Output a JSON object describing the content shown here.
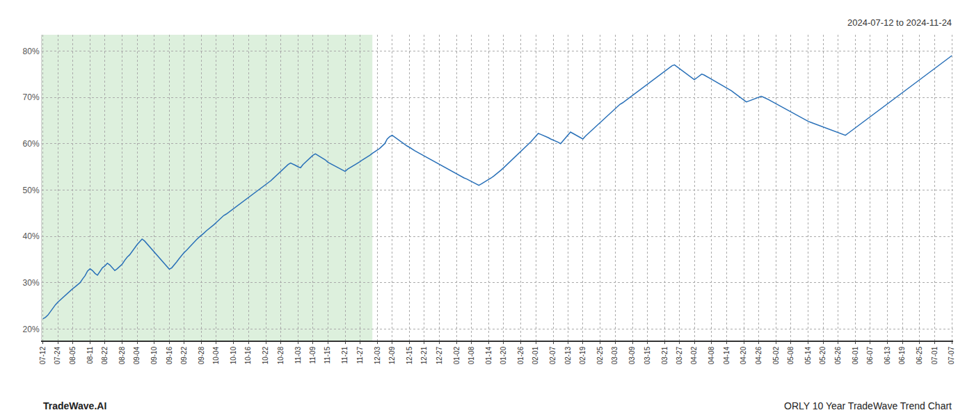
{
  "chart_data": {
    "type": "line",
    "annotations": [
      "2024-07-12 to 2024-11-24",
      "TradeWave.AI",
      "ORLY 10 Year TradeWave Trend Chart"
    ],
    "color": "#2970b8",
    "grid": true,
    "highlight": {
      "end": 133,
      "color": "#d4ecd4"
    },
    "ylim": [
      0.175,
      0.835
    ],
    "yticks": [
      {
        "value": 0.2,
        "label": "20%"
      },
      {
        "value": 0.3,
        "label": "30%"
      },
      {
        "value": 0.4,
        "label": "40%"
      },
      {
        "value": 0.5,
        "label": "50%"
      },
      {
        "value": 0.6,
        "label": "60%"
      },
      {
        "value": 0.7,
        "label": "70%"
      },
      {
        "value": 0.8,
        "label": "80%"
      }
    ],
    "categories": [
      "07-12",
      null,
      null,
      null,
      null,
      null,
      "07-24",
      null,
      null,
      null,
      null,
      null,
      "08-05",
      null,
      null,
      null,
      null,
      null,
      null,
      "08-11",
      null,
      null,
      null,
      null,
      null,
      "08-22",
      null,
      null,
      null,
      null,
      null,
      null,
      "08-28",
      null,
      null,
      null,
      null,
      null,
      "09-04",
      null,
      null,
      null,
      null,
      null,
      null,
      "09-10",
      null,
      null,
      null,
      null,
      null,
      "09-16",
      null,
      null,
      null,
      null,
      null,
      "09-22",
      null,
      null,
      null,
      null,
      null,
      null,
      "09-28",
      null,
      null,
      null,
      null,
      null,
      "10-04",
      null,
      null,
      null,
      null,
      null,
      null,
      "10-10",
      null,
      null,
      null,
      null,
      null,
      "10-16",
      null,
      null,
      null,
      null,
      null,
      null,
      "10-22",
      null,
      null,
      null,
      null,
      null,
      "10-28",
      null,
      null,
      null,
      null,
      null,
      null,
      "11-03",
      null,
      null,
      null,
      null,
      null,
      "11-09",
      null,
      null,
      null,
      null,
      null,
      "11-15",
      null,
      null,
      null,
      null,
      null,
      null,
      "11-21",
      null,
      null,
      null,
      null,
      null,
      "11-27",
      null,
      null,
      null,
      null,
      null,
      null,
      "12-03",
      null,
      null,
      null,
      null,
      null,
      "12-09",
      null,
      null,
      null,
      null,
      null,
      null,
      "12-15",
      null,
      null,
      null,
      null,
      null,
      "12-21",
      null,
      null,
      null,
      null,
      null,
      "12-27",
      null,
      null,
      null,
      null,
      null,
      null,
      "01-02",
      null,
      null,
      null,
      null,
      null,
      "01-08",
      null,
      null,
      null,
      null,
      null,
      null,
      "01-14",
      null,
      null,
      null,
      null,
      null,
      "01-20",
      null,
      null,
      null,
      null,
      null,
      null,
      "01-26",
      null,
      null,
      null,
      null,
      null,
      "02-01",
      null,
      null,
      null,
      null,
      null,
      null,
      "02-07",
      null,
      null,
      null,
      null,
      null,
      "02-13",
      null,
      null,
      null,
      null,
      null,
      "02-19",
      null,
      null,
      null,
      null,
      null,
      null,
      "02-25",
      null,
      null,
      null,
      null,
      null,
      "03-03",
      null,
      null,
      null,
      null,
      null,
      null,
      "03-09",
      null,
      null,
      null,
      null,
      null,
      "03-15",
      null,
      null,
      null,
      null,
      null,
      null,
      "03-21",
      null,
      null,
      null,
      null,
      null,
      "03-27",
      null,
      null,
      null,
      null,
      null,
      "04-02",
      null,
      null,
      null,
      null,
      null,
      null,
      "04-08",
      null,
      null,
      null,
      null,
      null,
      "04-14",
      null,
      null,
      null,
      null,
      null,
      null,
      "04-20",
      null,
      null,
      null,
      null,
      null,
      "04-26",
      null,
      null,
      null,
      null,
      null,
      null,
      "05-02",
      null,
      null,
      null,
      null,
      null,
      "05-08",
      null,
      null,
      null,
      null,
      null,
      null,
      "05-14",
      null,
      null,
      null,
      null,
      null,
      "05-20",
      null,
      null,
      null,
      null,
      null,
      "05-26",
      null,
      null,
      null,
      null,
      null,
      null,
      "06-01",
      null,
      null,
      null,
      null,
      null,
      "06-07",
      null,
      null,
      null,
      null,
      null,
      null,
      "06-13",
      null,
      null,
      null,
      null,
      null,
      "06-19",
      null,
      null,
      null,
      null,
      null,
      null,
      "06-25",
      null,
      null,
      null,
      null,
      null,
      "07-01",
      null,
      null,
      null,
      null,
      null,
      null,
      "07-07"
    ],
    "values": [
      0.222,
      0.225,
      0.23,
      0.238,
      0.245,
      0.252,
      0.258,
      0.263,
      0.268,
      0.272,
      0.278,
      0.282,
      0.287,
      0.291,
      0.296,
      0.3,
      0.308,
      0.315,
      0.325,
      0.33,
      0.326,
      0.32,
      0.316,
      0.325,
      0.332,
      0.336,
      0.342,
      0.338,
      0.332,
      0.326,
      0.33,
      0.335,
      0.34,
      0.348,
      0.355,
      0.36,
      0.368,
      0.375,
      0.382,
      0.388,
      0.394,
      0.39,
      0.384,
      0.378,
      0.372,
      0.366,
      0.36,
      0.353,
      0.347,
      0.341,
      0.335,
      0.329,
      0.332,
      0.338,
      0.345,
      0.352,
      0.359,
      0.365,
      0.37,
      0.376,
      0.382,
      0.388,
      0.393,
      0.398,
      0.402,
      0.407,
      0.412,
      0.416,
      0.421,
      0.425,
      0.43,
      0.435,
      0.44,
      0.445,
      0.448,
      0.452,
      0.455,
      0.459,
      0.463,
      0.467,
      0.471,
      0.475,
      0.479,
      0.483,
      0.487,
      0.491,
      0.495,
      0.499,
      0.503,
      0.507,
      0.511,
      0.516,
      0.52,
      0.525,
      0.53,
      0.535,
      0.54,
      0.545,
      0.55,
      0.555,
      0.558,
      0.556,
      0.553,
      0.55,
      0.548,
      0.555,
      0.56,
      0.565,
      0.57,
      0.575,
      0.578,
      0.575,
      0.572,
      0.568,
      0.565,
      0.56,
      0.557,
      0.554,
      0.551,
      0.548,
      0.545,
      0.542,
      0.54,
      0.545,
      0.548,
      0.552,
      0.555,
      0.558,
      0.561,
      0.565,
      0.568,
      0.572,
      0.575,
      0.579,
      0.582,
      0.586,
      0.59,
      0.595,
      0.6,
      0.61,
      0.615,
      0.618,
      0.614,
      0.61,
      0.607,
      0.603,
      0.599,
      0.595,
      0.592,
      0.588,
      0.585,
      0.582,
      0.579,
      0.576,
      0.573,
      0.57,
      0.567,
      0.564,
      0.561,
      0.558,
      0.555,
      0.552,
      0.55,
      0.547,
      0.544,
      0.541,
      0.538,
      0.535,
      0.532,
      0.529,
      0.526,
      0.524,
      0.521,
      0.518,
      0.516,
      0.513,
      0.51,
      0.513,
      0.516,
      0.519,
      0.522,
      0.526,
      0.53,
      0.534,
      0.538,
      0.543,
      0.548,
      0.553,
      0.558,
      0.563,
      0.568,
      0.573,
      0.578,
      0.583,
      0.588,
      0.593,
      0.598,
      0.604,
      0.61,
      0.616,
      0.622,
      0.62,
      0.618,
      0.615,
      0.613,
      0.61,
      0.608,
      0.605,
      0.603,
      0.6,
      0.606,
      0.613,
      0.619,
      0.625,
      0.622,
      0.619,
      0.616,
      0.613,
      0.61,
      0.616,
      0.621,
      0.626,
      0.63,
      0.635,
      0.64,
      0.645,
      0.65,
      0.655,
      0.66,
      0.665,
      0.67,
      0.675,
      0.68,
      0.685,
      0.688,
      0.692,
      0.696,
      0.7,
      0.704,
      0.708,
      0.712,
      0.716,
      0.72,
      0.724,
      0.728,
      0.732,
      0.736,
      0.74,
      0.744,
      0.748,
      0.752,
      0.756,
      0.76,
      0.764,
      0.768,
      0.77,
      0.766,
      0.762,
      0.758,
      0.754,
      0.75,
      0.746,
      0.742,
      0.738,
      0.742,
      0.746,
      0.75,
      0.748,
      0.745,
      0.742,
      0.739,
      0.736,
      0.733,
      0.73,
      0.727,
      0.724,
      0.721,
      0.718,
      0.714,
      0.71,
      0.706,
      0.702,
      0.698,
      0.694,
      0.69,
      0.692,
      0.694,
      0.696,
      0.698,
      0.7,
      0.702,
      0.7,
      0.698,
      0.695,
      0.692,
      0.689,
      0.686,
      0.683,
      0.68,
      0.677,
      0.674,
      0.671,
      0.668,
      0.665,
      0.662,
      0.659,
      0.656,
      0.653,
      0.65,
      0.648,
      0.646,
      0.644,
      0.642,
      0.64,
      0.638,
      0.636,
      0.634,
      0.632,
      0.63,
      0.628,
      0.626,
      0.624,
      0.622,
      0.62,
      0.618,
      0.622,
      0.626,
      0.63,
      0.634,
      0.638,
      0.642,
      0.646,
      0.65,
      0.654,
      0.658,
      0.662,
      0.666,
      0.67,
      0.674,
      0.678,
      0.682,
      0.686,
      0.69,
      0.694,
      0.698,
      0.702,
      0.706,
      0.71,
      0.714,
      0.718,
      0.722,
      0.726,
      0.73,
      0.734,
      0.738,
      0.742,
      0.746,
      0.75,
      0.754,
      0.758,
      0.762,
      0.766,
      0.77,
      0.774,
      0.778,
      0.782,
      0.786,
      0.79
    ]
  }
}
